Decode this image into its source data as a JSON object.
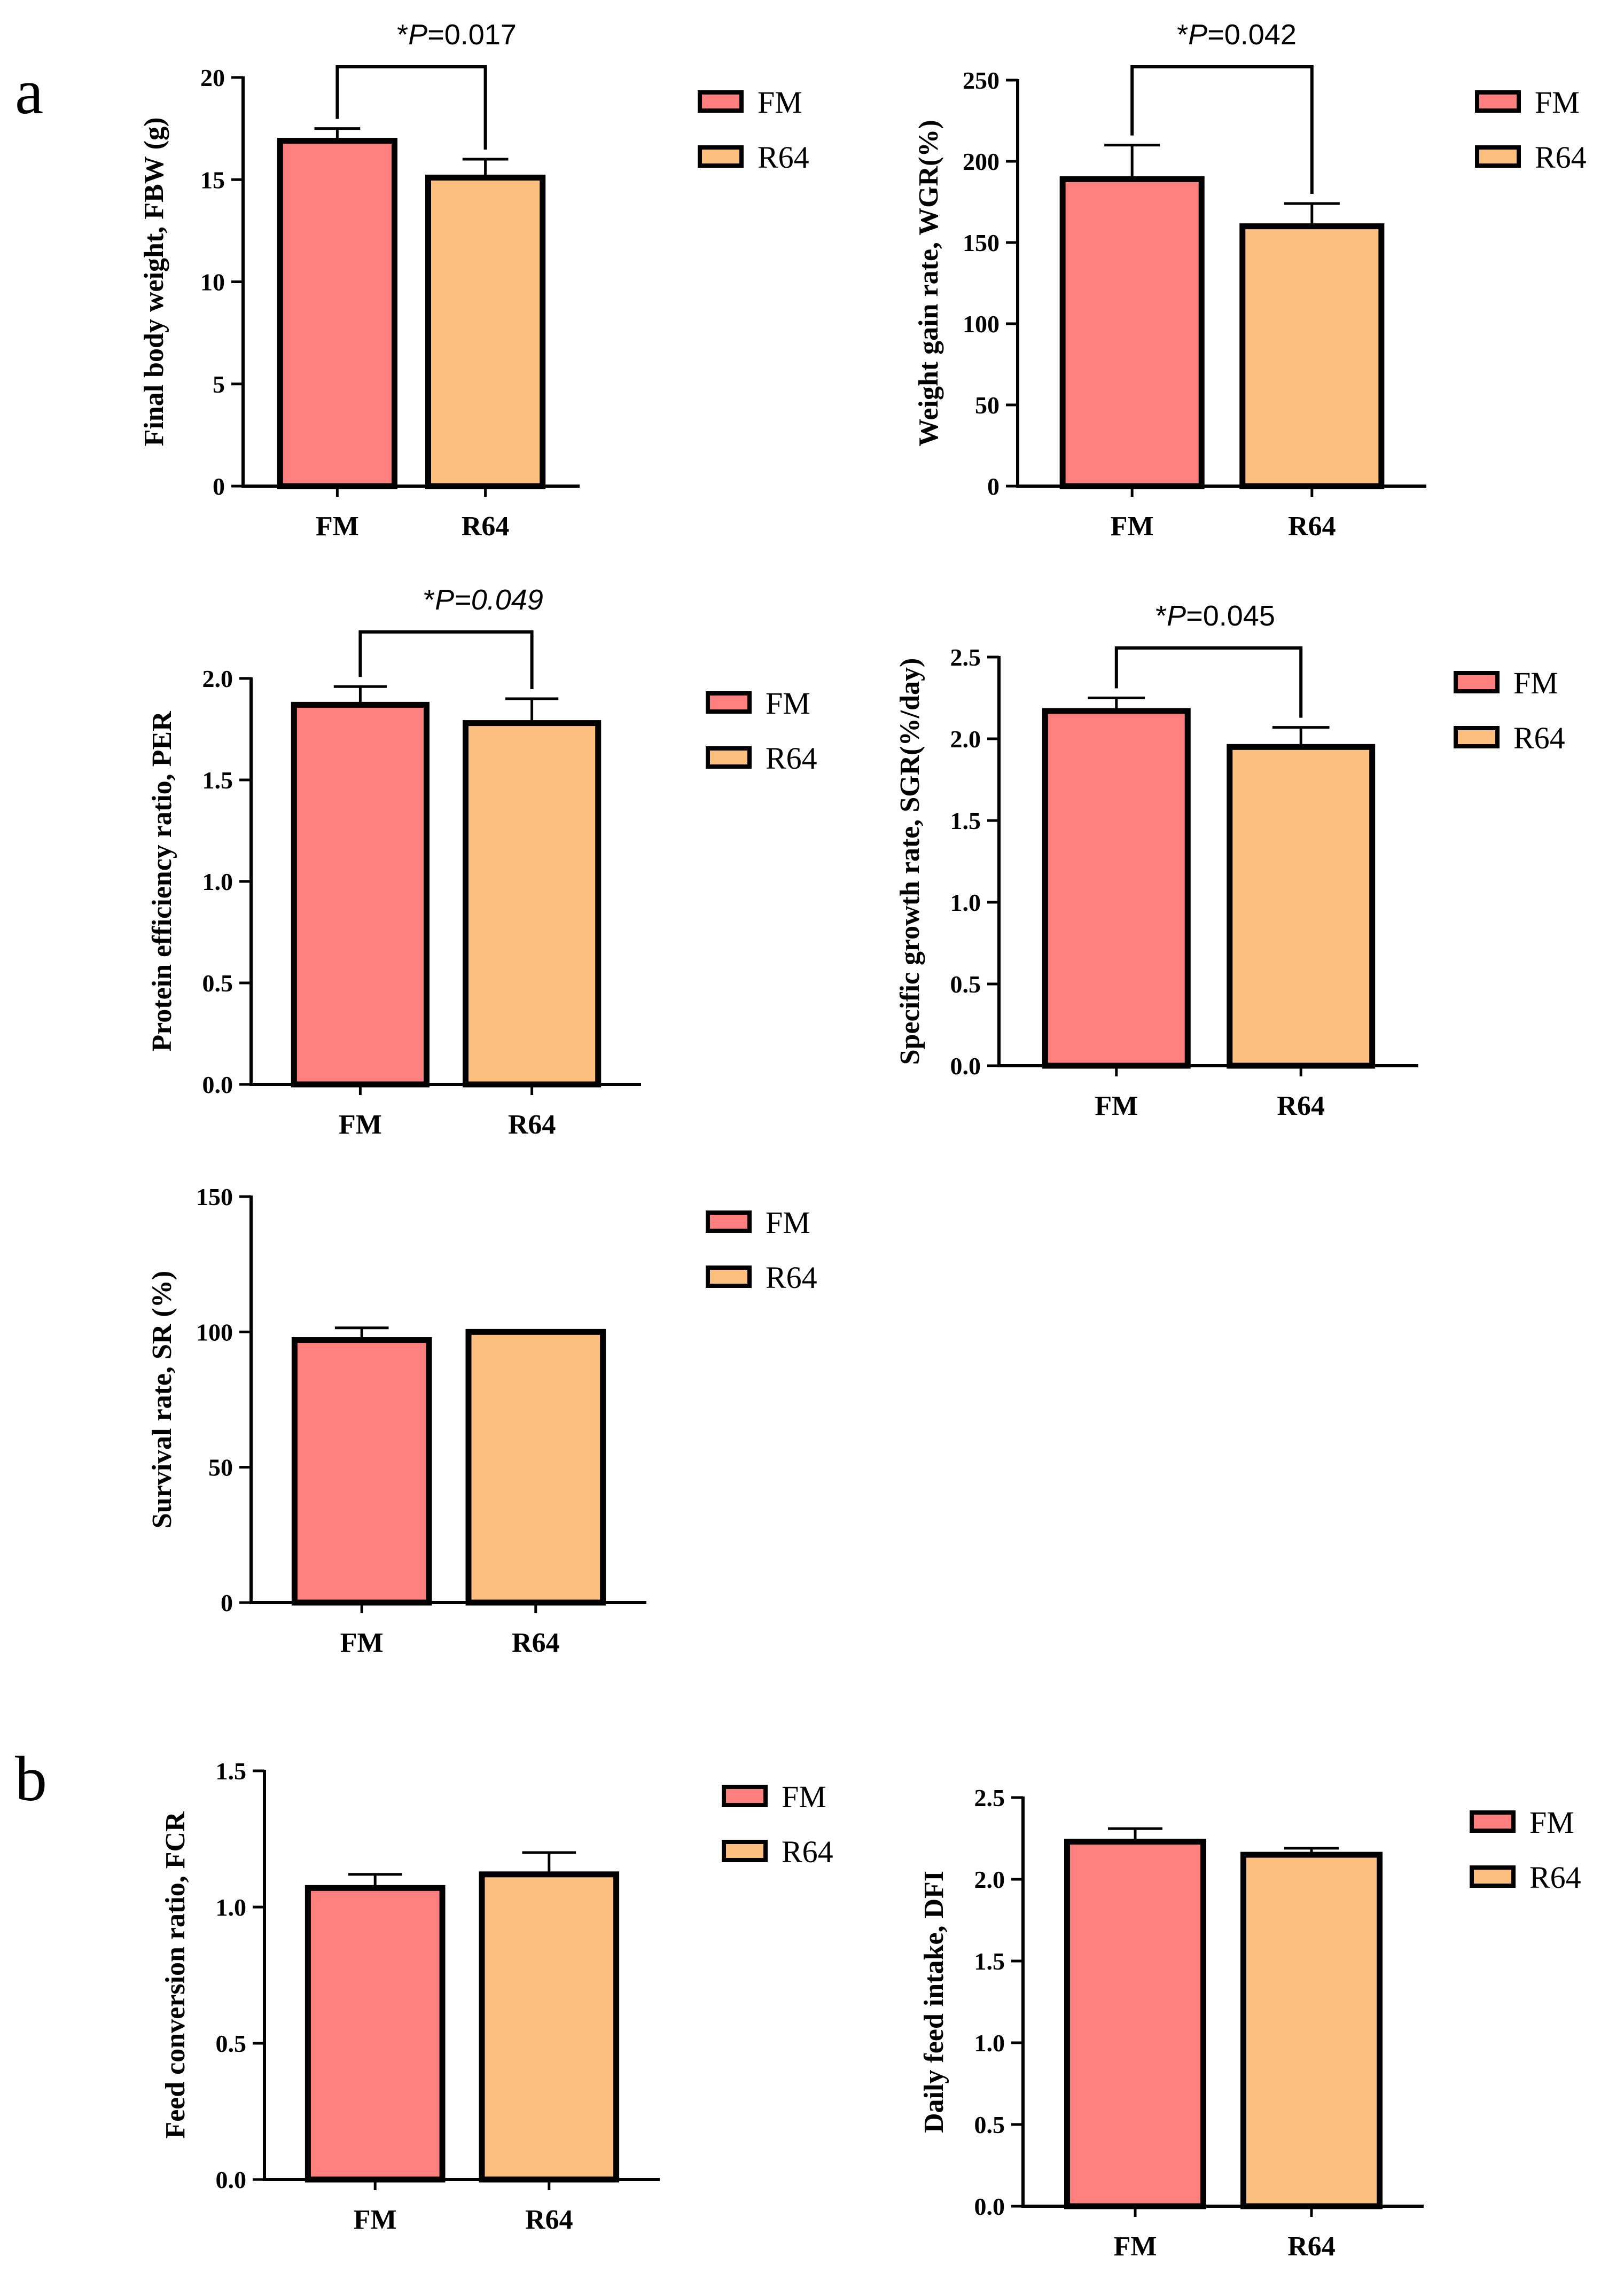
{
  "panel_labels": [
    "a",
    "b"
  ],
  "colors": {
    "FM": "#FF7F7F",
    "R64": "#FDBF7E",
    "stroke": "#000000"
  },
  "chart_data": [
    {
      "type": "bar",
      "panel": "a",
      "categories": [
        "FM",
        "R64"
      ],
      "values": [
        16.9,
        15.1
      ],
      "errors": [
        0.6,
        0.9
      ],
      "ylabel": "Final body weight, FBW (g)",
      "ylim": [
        0,
        20
      ],
      "yticks": [
        0,
        5,
        10,
        15,
        20
      ],
      "ytick_decimals": 0,
      "legend": [
        "FM",
        "R64"
      ],
      "significance": {
        "star": "*",
        "p": "P",
        "eq": "=0.017",
        "italic": false
      }
    },
    {
      "type": "bar",
      "panel": "a",
      "categories": [
        "FM",
        "R64"
      ],
      "values": [
        189,
        160
      ],
      "errors": [
        21,
        14
      ],
      "ylabel": "Weight gain rate, WGR(%)",
      "ylim": [
        0,
        250
      ],
      "yticks": [
        0,
        50,
        100,
        150,
        200,
        250
      ],
      "ytick_decimals": 0,
      "legend": [
        "FM",
        "R64"
      ],
      "significance": {
        "star": "*",
        "p": "P",
        "eq": "=0.042",
        "italic": false
      }
    },
    {
      "type": "bar",
      "panel": "a",
      "categories": [
        "FM",
        "R64"
      ],
      "values": [
        1.87,
        1.78
      ],
      "errors": [
        0.09,
        0.12
      ],
      "ylabel": "Protein efficiency ratio, PER",
      "ylim": [
        0,
        2.0
      ],
      "yticks": [
        0,
        0.5,
        1.0,
        1.5,
        2.0
      ],
      "ytick_decimals": 1,
      "legend": [
        "FM",
        "R64"
      ],
      "significance": {
        "star": "*",
        "p": "P",
        "eq": "=0.049",
        "italic": true
      }
    },
    {
      "type": "bar",
      "panel": "a",
      "categories": [
        "FM",
        "R64"
      ],
      "values": [
        2.17,
        1.95
      ],
      "errors": [
        0.08,
        0.12
      ],
      "ylabel": "Specific growth rate, SGR(%/day)",
      "ylim": [
        0,
        2.5
      ],
      "yticks": [
        0,
        0.5,
        1.0,
        1.5,
        2.0,
        2.5
      ],
      "ytick_decimals": 1,
      "legend": [
        "FM",
        "R64"
      ],
      "significance": {
        "star": "*",
        "p": "P",
        "eq": "=0.045",
        "italic": false
      }
    },
    {
      "type": "bar",
      "panel": "a",
      "categories": [
        "FM",
        "R64"
      ],
      "values": [
        97,
        100
      ],
      "errors": [
        4.5,
        0
      ],
      "ylabel": "Survival rate, SR (%)",
      "ylim": [
        0,
        150
      ],
      "yticks": [
        0,
        50,
        100,
        150
      ],
      "ytick_decimals": 0,
      "legend": [
        "FM",
        "R64"
      ],
      "significance": null
    },
    {
      "type": "bar",
      "panel": "b",
      "categories": [
        "FM",
        "R64"
      ],
      "values": [
        1.07,
        1.12
      ],
      "errors": [
        0.05,
        0.08
      ],
      "ylabel": "Feed conversion ratio, FCR",
      "ylim": [
        0,
        1.5
      ],
      "yticks": [
        0,
        0.5,
        1.0,
        1.5
      ],
      "ytick_decimals": 1,
      "legend": [
        "FM",
        "R64"
      ],
      "significance": null
    },
    {
      "type": "bar",
      "panel": "b",
      "categories": [
        "FM",
        "R64"
      ],
      "values": [
        2.23,
        2.15
      ],
      "errors": [
        0.08,
        0.04
      ],
      "ylabel": "Daily feed intake, DFI",
      "ylim": [
        0,
        2.5
      ],
      "yticks": [
        0,
        0.5,
        1.0,
        1.5,
        2.0,
        2.5
      ],
      "ytick_decimals": 1,
      "legend": [
        "FM",
        "R64"
      ],
      "significance": null
    }
  ]
}
